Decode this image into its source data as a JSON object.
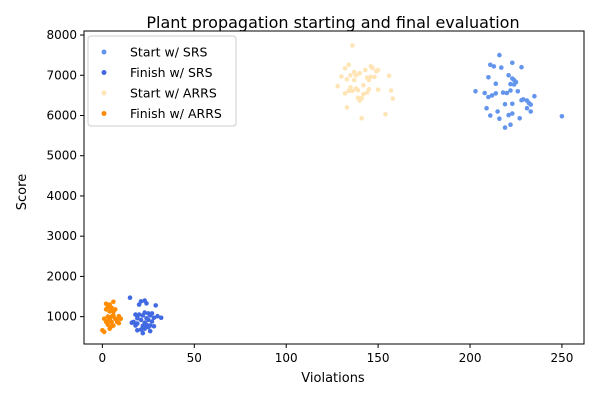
{
  "chart_data": {
    "type": "scatter",
    "title": "Plant propagation starting and final evaluation",
    "xlabel": "Violations",
    "ylabel": "Score",
    "xlim": [
      -10,
      262
    ],
    "ylim": [
      320,
      8100
    ],
    "xticks": [
      0,
      50,
      100,
      150,
      200,
      250
    ],
    "yticks": [
      1000,
      2000,
      3000,
      4000,
      5000,
      6000,
      7000,
      8000
    ],
    "grid": false,
    "legend_position": "top-left",
    "series": [
      {
        "name": "Start w/ SRS",
        "color": "#6495ED",
        "points": [
          [
            203,
            6600
          ],
          [
            208,
            6560
          ],
          [
            209,
            6180
          ],
          [
            210,
            6460
          ],
          [
            210,
            6950
          ],
          [
            211,
            6000
          ],
          [
            211,
            7260
          ],
          [
            212,
            6500
          ],
          [
            213,
            7220
          ],
          [
            214,
            6550
          ],
          [
            214,
            6790
          ],
          [
            215,
            6100
          ],
          [
            216,
            5920
          ],
          [
            216,
            7500
          ],
          [
            217,
            7190
          ],
          [
            218,
            6570
          ],
          [
            219,
            5700
          ],
          [
            219,
            6280
          ],
          [
            220,
            6560
          ],
          [
            221,
            6010
          ],
          [
            221,
            7000
          ],
          [
            222,
            5770
          ],
          [
            222,
            6620
          ],
          [
            222,
            6780
          ],
          [
            223,
            6050
          ],
          [
            223,
            6290
          ],
          [
            223,
            6920
          ],
          [
            223,
            7310
          ],
          [
            224,
            6770
          ],
          [
            224,
            6880
          ],
          [
            225,
            6830
          ],
          [
            226,
            6600
          ],
          [
            227,
            5930
          ],
          [
            228,
            6380
          ],
          [
            228,
            7200
          ],
          [
            229,
            6400
          ],
          [
            231,
            6370
          ],
          [
            231,
            6180
          ],
          [
            232,
            6310
          ],
          [
            233,
            6270
          ],
          [
            233,
            6100
          ],
          [
            235,
            6480
          ],
          [
            250,
            5980
          ]
        ]
      },
      {
        "name": "Finish w/ SRS",
        "color": "#4169E1",
        "points": [
          [
            15,
            1470
          ],
          [
            16,
            850
          ],
          [
            17,
            870
          ],
          [
            18,
            780
          ],
          [
            18,
            1050
          ],
          [
            19,
            660
          ],
          [
            19,
            830
          ],
          [
            19,
            960
          ],
          [
            20,
            1050
          ],
          [
            20,
            1300
          ],
          [
            21,
            920
          ],
          [
            21,
            680
          ],
          [
            21,
            1380
          ],
          [
            22,
            1030
          ],
          [
            22,
            770
          ],
          [
            22,
            590
          ],
          [
            23,
            1100
          ],
          [
            23,
            850
          ],
          [
            23,
            1400
          ],
          [
            23,
            700
          ],
          [
            24,
            1330
          ],
          [
            24,
            960
          ],
          [
            24,
            800
          ],
          [
            25,
            740
          ],
          [
            25,
            920
          ],
          [
            25,
            1080
          ],
          [
            26,
            780
          ],
          [
            26,
            1030
          ],
          [
            26,
            640
          ],
          [
            27,
            880
          ],
          [
            27,
            1080
          ],
          [
            28,
            970
          ],
          [
            28,
            760
          ],
          [
            29,
            1280
          ],
          [
            30,
            1010
          ],
          [
            32,
            970
          ]
        ]
      },
      {
        "name": "Start w/ ARRS",
        "color": "#FFE4B5",
        "points": [
          [
            128,
            6730
          ],
          [
            130,
            6970
          ],
          [
            132,
            7170
          ],
          [
            132,
            6550
          ],
          [
            133,
            6200
          ],
          [
            133,
            6900
          ],
          [
            134,
            6610
          ],
          [
            134,
            7260
          ],
          [
            135,
            6700
          ],
          [
            135,
            7000
          ],
          [
            136,
            6610
          ],
          [
            136,
            7740
          ],
          [
            137,
            7080
          ],
          [
            137,
            6880
          ],
          [
            138,
            6670
          ],
          [
            138,
            7000
          ],
          [
            139,
            6630
          ],
          [
            139,
            6440
          ],
          [
            140,
            7050
          ],
          [
            140,
            6370
          ],
          [
            141,
            6430
          ],
          [
            141,
            5930
          ],
          [
            142,
            6750
          ],
          [
            142,
            6530
          ],
          [
            143,
            7130
          ],
          [
            144,
            6940
          ],
          [
            144,
            6570
          ],
          [
            145,
            6650
          ],
          [
            145,
            6880
          ],
          [
            146,
            7220
          ],
          [
            146,
            6960
          ],
          [
            147,
            7180
          ],
          [
            148,
            6960
          ],
          [
            149,
            7100
          ],
          [
            150,
            7130
          ],
          [
            150,
            6640
          ],
          [
            154,
            6030
          ],
          [
            156,
            6990
          ],
          [
            157,
            6620
          ],
          [
            158,
            6420
          ]
        ]
      },
      {
        "name": "Finish w/ ARRS",
        "color": "#FF8C00",
        "points": [
          [
            0,
            660
          ],
          [
            1,
            620
          ],
          [
            1,
            950
          ],
          [
            2,
            870
          ],
          [
            2,
            1180
          ],
          [
            2,
            1320
          ],
          [
            3,
            1240
          ],
          [
            3,
            1000
          ],
          [
            3,
            800
          ],
          [
            3,
            890
          ],
          [
            4,
            1300
          ],
          [
            4,
            930
          ],
          [
            4,
            1130
          ],
          [
            4,
            700
          ],
          [
            5,
            1000
          ],
          [
            5,
            870
          ],
          [
            5,
            1220
          ],
          [
            5,
            760
          ],
          [
            6,
            1120
          ],
          [
            6,
            1030
          ],
          [
            6,
            1370
          ],
          [
            6,
            780
          ],
          [
            7,
            950
          ],
          [
            7,
            1180
          ],
          [
            8,
            870
          ],
          [
            8,
            910
          ],
          [
            9,
            1010
          ],
          [
            9,
            840
          ],
          [
            10,
            950
          ]
        ]
      }
    ]
  }
}
